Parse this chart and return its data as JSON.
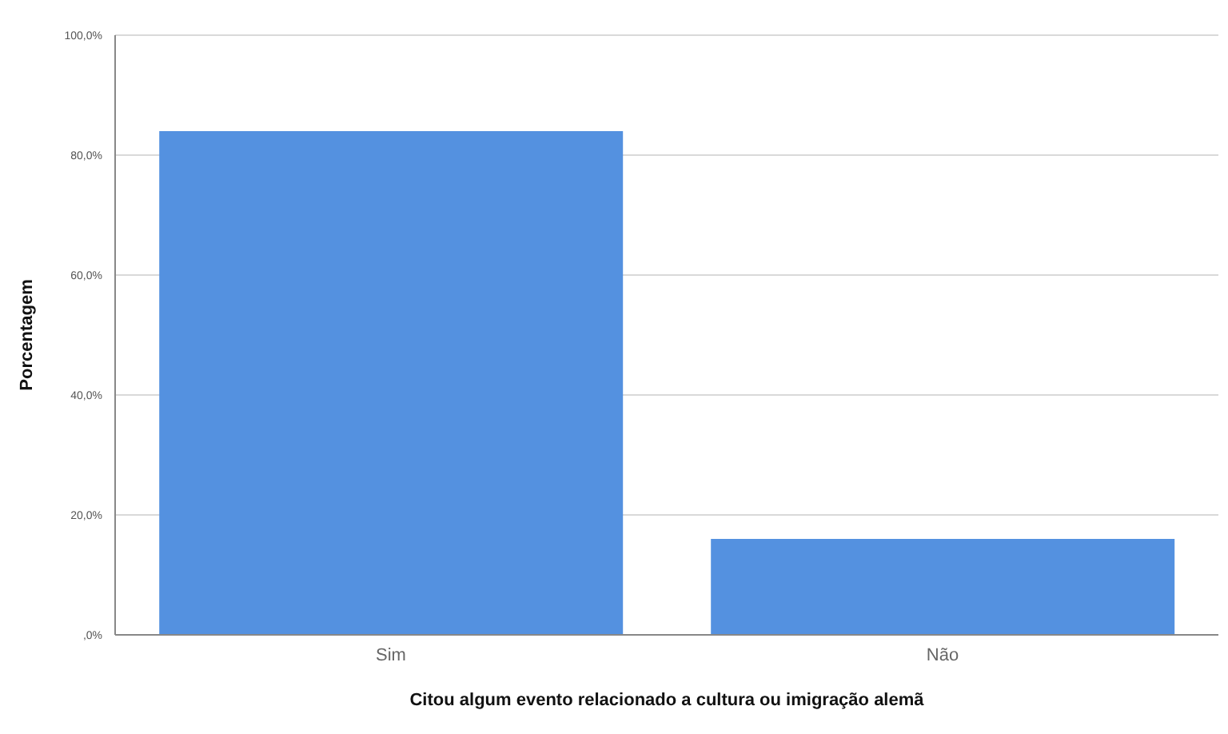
{
  "chart_data": {
    "type": "bar",
    "xlabel": "Citou algum evento relacionado a cultura ou imigração alemã",
    "ylabel": "Porcentagem",
    "categories": [
      "Sim",
      "Não"
    ],
    "values": [
      84,
      16
    ],
    "color": "#5491e0",
    "ylim": [
      0,
      100
    ],
    "yticks": [
      {
        "value": 0,
        "label": ",0%"
      },
      {
        "value": 20,
        "label": "20,0%"
      },
      {
        "value": 40,
        "label": "40,0%"
      },
      {
        "value": 60,
        "label": "60,0%"
      },
      {
        "value": 80,
        "label": "80,0%"
      },
      {
        "value": 100,
        "label": "100,0%"
      }
    ],
    "grid": "y"
  }
}
